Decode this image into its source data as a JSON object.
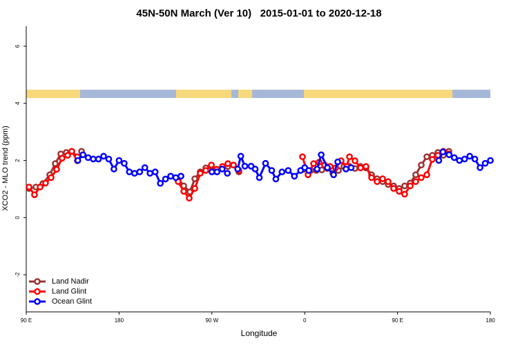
{
  "chart_data": {
    "type": "line",
    "title": "45N-50N March (Ver 10)   2015-01-01 to 2020-12-18",
    "xlabel": "Longitude",
    "ylabel": "XCO2 - MLO trend (ppm)",
    "xlim": [
      90,
      540
    ],
    "ylim": [
      -3.3,
      6.7
    ],
    "xticks": [
      {
        "value": 90,
        "label": "90 E"
      },
      180,
      {
        "value": 270,
        "label": "90 W"
      },
      {
        "value": 360,
        "label": "0"
      },
      {
        "value": 450,
        "label": "90 E"
      },
      180
    ],
    "yticks": [
      -2,
      0,
      2,
      4,
      6
    ],
    "legend": "bottom-left",
    "series": [
      {
        "name": "Land Nadir",
        "color": "#993333",
        "x": [
          92.7,
          99.4,
          106.1,
          112.8,
          118.1,
          123.5,
          128.8,
          134.2,
          139.6,
          143.6,
          null,
          237.3,
          242.7,
          248.7,
          253.4,
          258.7,
          264.1,
          269.5,
          274.8,
          280.2,
          285.5,
          290.9,
          296.2,
          null,
          359.2,
          365.9,
          371.2,
          376.6,
          381.9,
          387.3,
          392.7,
          398.0,
          403.4,
          408.7,
          414.1,
          419.4,
          424.8,
          430.2,
          435.5,
          440.9,
          446.2,
          451.6,
          456.9,
          462.3,
          467.6,
          473.0,
          478.4,
          483.7,
          489.1,
          494.4,
          499.8
        ],
        "values": [
          1.02,
          1.07,
          1.19,
          1.5,
          1.89,
          2.23,
          2.28,
          2.32,
          1.99,
          2.32,
          null,
          1.36,
          1.11,
          0.9,
          1.36,
          1.6,
          1.74,
          1.79,
          1.69,
          1.74,
          1.79,
          1.84,
          1.6,
          null,
          1.69,
          1.65,
          1.65,
          1.67,
          1.72,
          1.55,
          1.65,
          1.79,
          1.79,
          1.72,
          1.79,
          1.74,
          1.5,
          1.36,
          1.26,
          1.16,
          1.11,
          1.02,
          1.11,
          1.21,
          1.5,
          1.84,
          2.13,
          2.18,
          2.28,
          2.18,
          2.32
        ]
      },
      {
        "name": "Land Glint",
        "color": "#ff0000",
        "x": [
          92.7,
          98.0,
          103.4,
          108.7,
          114.1,
          119.5,
          124.8,
          130.2,
          134.2,
          139.6,
          null,
          237.3,
          242.7,
          248.0,
          253.4,
          258.7,
          264.1,
          269.5,
          274.8,
          280.2,
          285.5,
          290.9,
          296.2,
          null,
          357.8,
          363.2,
          368.6,
          373.9,
          379.3,
          384.6,
          390.0,
          395.3,
          400.7,
          403.4,
          408.7,
          414.1,
          419.4,
          424.8,
          430.2,
          435.5,
          440.9,
          446.2,
          451.6,
          456.9,
          462.3,
          467.6,
          473.0,
          478.4,
          483.7,
          489.1,
          494.4,
          499.8
        ],
        "values": [
          1.07,
          0.8,
          1.07,
          1.21,
          1.4,
          1.69,
          2.08,
          2.18,
          2.32,
          2.13,
          null,
          1.26,
          0.92,
          0.68,
          1.02,
          1.55,
          1.65,
          1.84,
          1.69,
          1.79,
          1.89,
          1.84,
          1.65,
          null,
          2.13,
          1.5,
          1.89,
          1.94,
          1.84,
          1.79,
          1.74,
          1.99,
          1.79,
          2.13,
          1.99,
          1.74,
          1.79,
          1.4,
          1.26,
          1.36,
          1.26,
          1.02,
          0.92,
          0.82,
          1.11,
          1.26,
          1.4,
          1.5,
          2.04,
          2.18,
          2.32,
          2.23
        ]
      },
      {
        "name": "Ocean Glint",
        "color": "#0000ff",
        "x": [
          140,
          145,
          150,
          155,
          160,
          165,
          170,
          175,
          180,
          185,
          190,
          195,
          200,
          205,
          210,
          215,
          220,
          225,
          230,
          235,
          240,
          null,
          270,
          275,
          280,
          285,
          null,
          295,
          298,
          302,
          308,
          312,
          316,
          322,
          328,
          332,
          338,
          344,
          350,
          356,
          360,
          364,
          null,
          372,
          376,
          382,
          388,
          392,
          null,
          400,
          405,
          null,
          490,
          494,
          500,
          505,
          510,
          515,
          520,
          525,
          530,
          535,
          540
        ],
        "values": [
          2.0,
          2.2,
          2.1,
          2.05,
          2.05,
          2.15,
          2.05,
          1.7,
          2.0,
          1.9,
          1.6,
          1.55,
          1.6,
          1.75,
          1.55,
          1.6,
          1.2,
          1.35,
          1.45,
          1.4,
          1.45,
          null,
          1.6,
          1.6,
          1.7,
          1.55,
          null,
          1.7,
          2.15,
          1.8,
          1.8,
          1.7,
          1.4,
          1.9,
          1.65,
          1.35,
          1.6,
          1.65,
          1.45,
          1.65,
          1.75,
          1.65,
          null,
          1.7,
          2.2,
          1.75,
          1.5,
          1.95,
          null,
          1.7,
          1.75,
          null,
          2.0,
          2.3,
          2.2,
          2.1,
          2.0,
          2.05,
          2.15,
          2.05,
          1.75,
          1.9,
          2.0
        ]
      }
    ]
  }
}
